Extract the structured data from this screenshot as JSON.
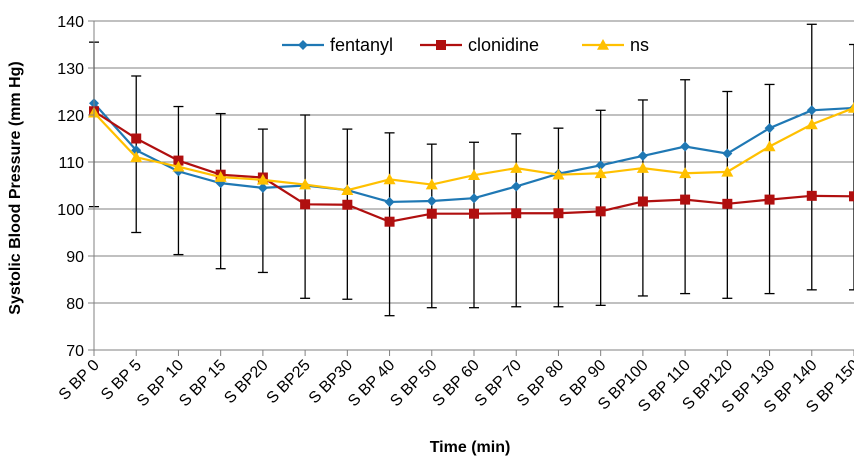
{
  "chart_data": {
    "type": "line",
    "xlabel": "Time (min)",
    "ylabel": "Systolic Blood Pressure (mm Hg)",
    "ylim": [
      70,
      140
    ],
    "yticks": [
      70,
      80,
      90,
      100,
      110,
      120,
      130,
      140
    ],
    "grid": "horizontal",
    "legend_position": "top-center",
    "categories": [
      "S BP 0",
      "S BP 5",
      "S BP 10",
      "S BP 15",
      "S BP20",
      "S BP25",
      "S BP30",
      "S BP 40",
      "S BP 50",
      "S BP 60",
      "S BP 70",
      "S BP 80",
      "S BP 90",
      "S BP100",
      "S BP 110",
      "S BP120",
      "S BP 130",
      "S BP 140",
      "S BP 150"
    ],
    "series": [
      {
        "name": "fentanyl",
        "color": "#1f78b4",
        "marker": "diamond",
        "values": [
          122.5,
          112.5,
          108.0,
          105.5,
          104.5,
          105.0,
          104.0,
          101.5,
          101.7,
          102.3,
          104.8,
          107.5,
          109.3,
          111.3,
          113.3,
          111.8,
          117.2,
          121.0,
          121.5
        ],
        "error_high": [
          135.5,
          128.3,
          121.8,
          120.3,
          117.0,
          120.0,
          117.0,
          116.2,
          113.8,
          114.2,
          116.0,
          117.2,
          121.0,
          123.2,
          127.5,
          125.0,
          126.5,
          139.3,
          135.0
        ],
        "error_low": [
          100.5,
          95.0,
          90.3,
          87.3,
          86.5,
          81.0,
          80.8,
          77.3,
          79.0,
          79.0,
          79.2,
          79.2,
          79.5,
          81.5,
          82.0,
          81.0,
          82.0,
          82.8,
          82.8
        ]
      },
      {
        "name": "clonidine",
        "color": "#b00f0f",
        "marker": "square",
        "values": [
          120.8,
          115.0,
          110.3,
          107.3,
          106.7,
          101.0,
          100.9,
          97.3,
          99.0,
          99.0,
          99.1,
          99.1,
          99.5,
          101.6,
          102.0,
          101.1,
          102.0,
          102.8,
          102.7
        ]
      },
      {
        "name": "ns",
        "color": "#ffc000",
        "marker": "triangle",
        "values": [
          120.5,
          111.0,
          109.0,
          106.8,
          106.2,
          105.2,
          104.0,
          106.3,
          105.2,
          107.2,
          108.7,
          107.3,
          107.6,
          108.7,
          107.6,
          107.9,
          113.3,
          118.0,
          121.5
        ]
      }
    ]
  }
}
